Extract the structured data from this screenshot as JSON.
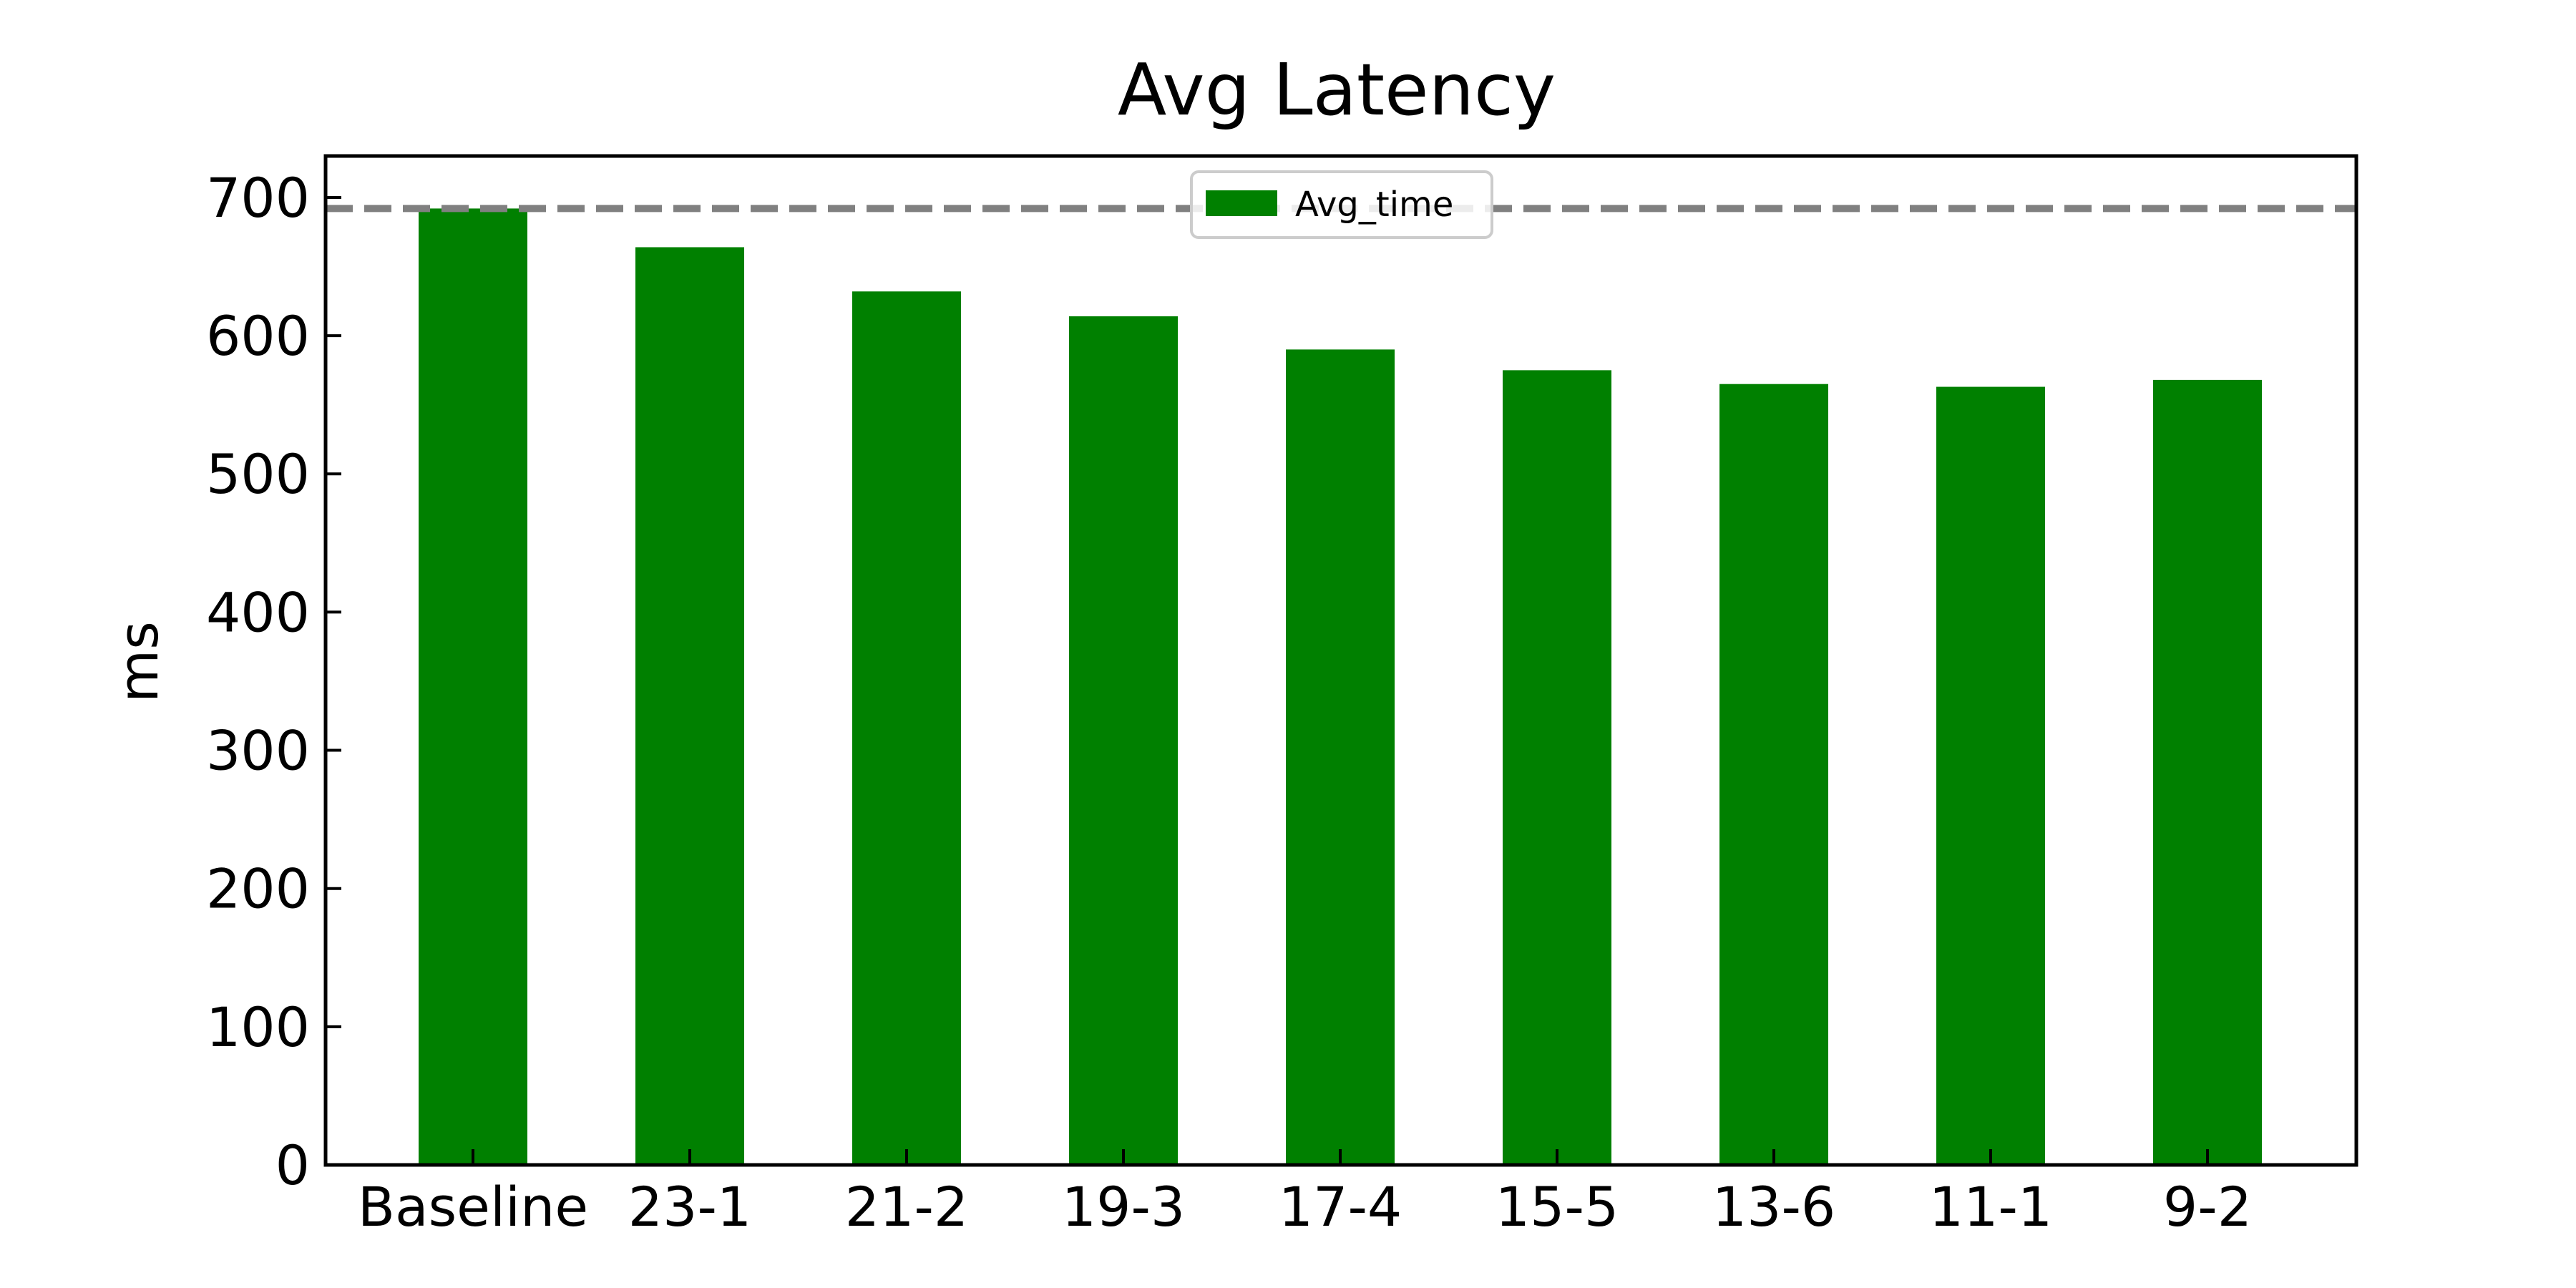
{
  "chart_data": {
    "type": "bar",
    "title": "Avg Latency",
    "xlabel": "",
    "ylabel": "ms",
    "categories": [
      "Baseline",
      "23-1",
      "21-2",
      "19-3",
      "17-4",
      "15-5",
      "13-6",
      "11-1",
      "9-2"
    ],
    "series": [
      {
        "name": "Avg_time",
        "values": [
          692,
          664,
          632,
          614,
          590,
          575,
          565,
          563,
          568
        ]
      }
    ],
    "ylim": [
      0,
      730
    ],
    "yticks": [
      0,
      100,
      200,
      300,
      400,
      500,
      600,
      700
    ],
    "reference_line": {
      "y": 692,
      "style": "dashed",
      "color": "#808080"
    },
    "legend": {
      "position": "top-center",
      "label": "Avg_time"
    },
    "grid": false,
    "colors": {
      "bar": "#008000",
      "axis": "#000000",
      "reference": "#808080",
      "legend_border": "#cccccc"
    }
  }
}
